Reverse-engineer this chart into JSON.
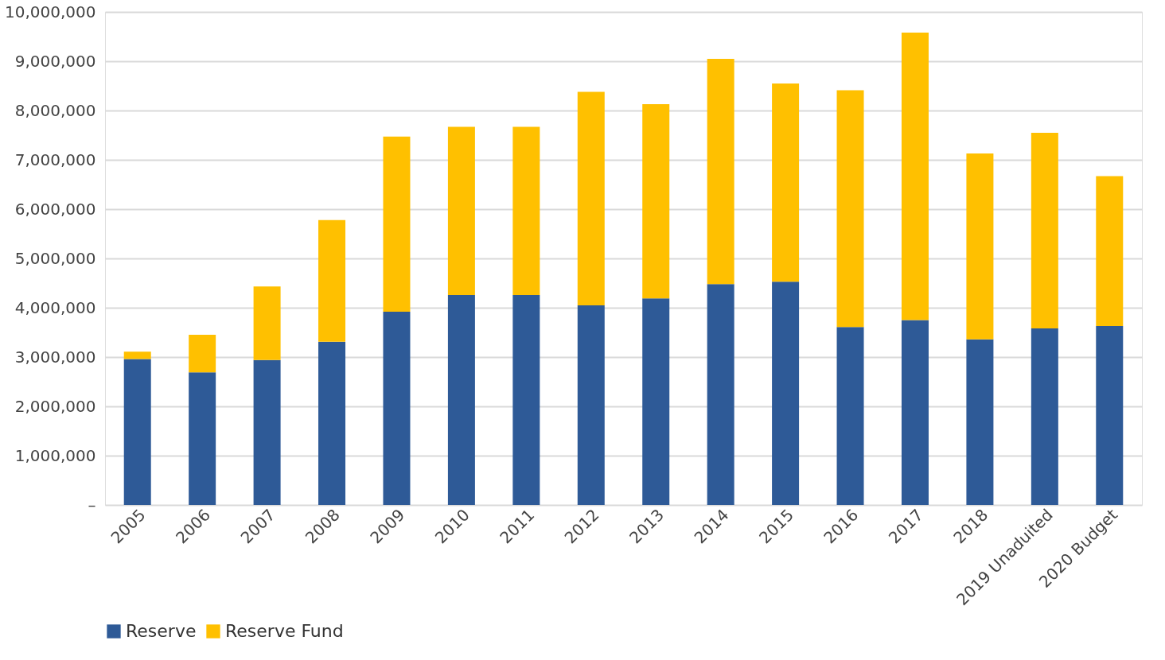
{
  "chart_data": {
    "type": "bar",
    "stacked": true,
    "categories": [
      "2005",
      "2006",
      "2007",
      "2008",
      "2009",
      "2010",
      "2011",
      "2012",
      "2013",
      "2014",
      "2015",
      "2016",
      "2017",
      "2018",
      "2019 Unaduited",
      "2020 Budget"
    ],
    "series": [
      {
        "name": "Reserve",
        "color": "#2e5a97",
        "values": [
          2960000,
          2690000,
          2940000,
          3310000,
          3920000,
          4260000,
          4260000,
          4050000,
          4190000,
          4480000,
          4530000,
          3610000,
          3750000,
          3360000,
          3580000,
          3630000
        ]
      },
      {
        "name": "Reserve Fund",
        "color": "#ffc000",
        "values": [
          150000,
          760000,
          1490000,
          2470000,
          3550000,
          3410000,
          3410000,
          4330000,
          3940000,
          4570000,
          4020000,
          4800000,
          5830000,
          3770000,
          3970000,
          3040000
        ]
      }
    ],
    "ylim": [
      0,
      10000000
    ],
    "yticks": [
      {
        "value": 0,
        "label": "–"
      },
      {
        "value": 1000000,
        "label": "1,000,000"
      },
      {
        "value": 2000000,
        "label": "2,000,000"
      },
      {
        "value": 3000000,
        "label": "3,000,000"
      },
      {
        "value": 4000000,
        "label": "4,000,000"
      },
      {
        "value": 5000000,
        "label": "5,000,000"
      },
      {
        "value": 6000000,
        "label": "6,000,000"
      },
      {
        "value": 7000000,
        "label": "7,000,000"
      },
      {
        "value": 8000000,
        "label": "8,000,000"
      },
      {
        "value": 9000000,
        "label": "9,000,000"
      },
      {
        "value": 10000000,
        "label": "10,000,000"
      }
    ],
    "grid": "y",
    "legend": "bottom"
  }
}
